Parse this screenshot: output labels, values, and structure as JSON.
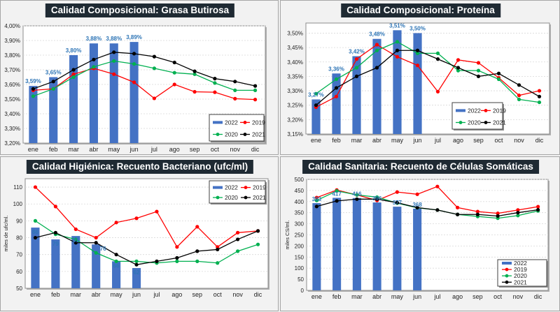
{
  "chart_data": [
    {
      "type": "bar",
      "title": "Calidad Composicional: Grasa Butirosa",
      "xlabel": "",
      "ylabel": "",
      "categories": [
        "ene",
        "feb",
        "mar",
        "abr",
        "may",
        "jun",
        "jul",
        "ago",
        "sep",
        "oct",
        "nov",
        "dic"
      ],
      "ylim": [
        3.2,
        4.0
      ],
      "yticks": [
        3.2,
        3.3,
        3.4,
        3.5,
        3.6,
        3.7,
        3.8,
        3.9,
        4.0
      ],
      "ytick_labels": [
        "3,20%",
        "3,30%",
        "3,40%",
        "3,50%",
        "3,60%",
        "3,70%",
        "3,80%",
        "3,90%",
        "4,00%"
      ],
      "grid": true,
      "legend_position": "bottom-right",
      "legend_layout": "2x2",
      "series": [
        {
          "name": "2022",
          "kind": "bar",
          "color": "#4472c4",
          "values": [
            3.59,
            3.65,
            3.8,
            3.88,
            3.88,
            3.89,
            null,
            null,
            null,
            null,
            null,
            null
          ],
          "labels": [
            "3,59%",
            "3,65%",
            "3,80%",
            "3,88%",
            "3,88%",
            "3,89%"
          ]
        },
        {
          "name": "2019",
          "kind": "line",
          "color": "#ff0000",
          "values": [
            3.56,
            3.57,
            3.67,
            3.71,
            3.67,
            3.615,
            3.505,
            3.6,
            3.55,
            3.547,
            3.503,
            3.497
          ]
        },
        {
          "name": "2020",
          "kind": "line",
          "color": "#00b050",
          "values": [
            3.52,
            3.57,
            3.65,
            3.72,
            3.76,
            3.74,
            3.71,
            3.68,
            3.67,
            3.61,
            3.56,
            3.56
          ]
        },
        {
          "name": "2021",
          "kind": "line",
          "color": "#000000",
          "values": [
            3.57,
            3.62,
            3.7,
            3.77,
            3.82,
            3.81,
            3.79,
            3.75,
            3.69,
            3.64,
            3.62,
            3.59
          ]
        }
      ]
    },
    {
      "type": "bar",
      "title": "Calidad Composicional: Proteína",
      "xlabel": "",
      "ylabel": "",
      "categories": [
        "ene",
        "feb",
        "mar",
        "abr",
        "may",
        "jun",
        "jul",
        "ago",
        "sep",
        "oct",
        "nov",
        "dic"
      ],
      "ylim": [
        3.15,
        3.535
      ],
      "yticks": [
        3.15,
        3.2,
        3.25,
        3.3,
        3.35,
        3.4,
        3.45,
        3.5
      ],
      "ytick_labels": [
        "3,15%",
        "3,20%",
        "3,25%",
        "3,30%",
        "3,35%",
        "3,40%",
        "3,45%",
        "3,50%"
      ],
      "grid": true,
      "legend_position": "bottom-right",
      "legend_layout": "2x2",
      "series": [
        {
          "name": "2022",
          "kind": "bar",
          "color": "#4472c4",
          "values": [
            3.27,
            3.36,
            3.42,
            3.48,
            3.51,
            3.5,
            null,
            null,
            null,
            null,
            null,
            null
          ],
          "labels": [
            "3,27%",
            "3,36%",
            "3,42%",
            "3,48%",
            "3,51%",
            "3,50%"
          ]
        },
        {
          "name": "2019",
          "kind": "line",
          "color": "#ff0000",
          "values": [
            3.243,
            3.28,
            3.41,
            3.46,
            3.418,
            3.388,
            3.297,
            3.407,
            3.397,
            3.345,
            3.284,
            3.3
          ]
        },
        {
          "name": "2020",
          "kind": "line",
          "color": "#00b050",
          "values": [
            3.29,
            3.34,
            3.38,
            3.44,
            3.47,
            3.43,
            3.43,
            3.37,
            3.37,
            3.34,
            3.27,
            3.26
          ]
        },
        {
          "name": "2021",
          "kind": "line",
          "color": "#000000",
          "values": [
            3.25,
            3.31,
            3.35,
            3.38,
            3.44,
            3.44,
            3.41,
            3.38,
            3.35,
            3.36,
            3.32,
            3.28
          ]
        }
      ]
    },
    {
      "type": "bar",
      "title": "Calidad Higiénica: Recuento Bacteriano (ufc/ml)",
      "xlabel": "",
      "ylabel": "miles de ufc/ml.",
      "categories": [
        "ene",
        "feb",
        "mar",
        "abr",
        "may",
        "jun",
        "jul",
        "ago",
        "sep",
        "oct",
        "nov",
        "dic"
      ],
      "ylim": [
        50,
        115
      ],
      "yticks": [
        50,
        60,
        70,
        80,
        90,
        100,
        110
      ],
      "ytick_labels": [
        "50",
        "60",
        "70",
        "80",
        "90",
        "100",
        "110"
      ],
      "grid": true,
      "legend_position": "top-right",
      "legend_layout": "2x2",
      "series": [
        {
          "name": "2022",
          "kind": "bar",
          "color": "#4472c4",
          "values": [
            86,
            79,
            81,
            76,
            66,
            62,
            null,
            null,
            null,
            null,
            null,
            null
          ],
          "labels": [
            "86",
            "79",
            "81",
            "76",
            "66",
            "62"
          ]
        },
        {
          "name": "2019",
          "kind": "line",
          "color": "#ff0000",
          "values": [
            110,
            98.5,
            85,
            80,
            89,
            91.5,
            95.5,
            74.5,
            86.5,
            74.5,
            83,
            84
          ]
        },
        {
          "name": "2020",
          "kind": "line",
          "color": "#00b050",
          "values": [
            90,
            82,
            79,
            71,
            66,
            66,
            65,
            66,
            66,
            65,
            72,
            76
          ]
        },
        {
          "name": "2021",
          "kind": "line",
          "color": "#000000",
          "values": [
            80,
            83,
            77,
            77,
            70,
            64,
            66,
            68,
            72,
            73,
            79,
            84
          ]
        }
      ]
    },
    {
      "type": "bar",
      "title": "Calidad Sanitaria: Recuento de Células Somáticas",
      "xlabel": "",
      "ylabel": "miles CS/ml.",
      "categories": [
        "ene",
        "feb",
        "mar",
        "abr",
        "may",
        "jun",
        "jul",
        "ago",
        "sep",
        "oct",
        "nov",
        "dic"
      ],
      "ylim": [
        0,
        500
      ],
      "yticks": [
        0,
        50,
        100,
        150,
        200,
        250,
        300,
        350,
        400,
        450,
        500
      ],
      "ytick_labels": [
        "0",
        "50",
        "100",
        "150",
        "200",
        "250",
        "300",
        "350",
        "400",
        "450",
        "500"
      ],
      "grid": true,
      "legend_position": "bottom-right",
      "legend_layout": "4x1",
      "series": [
        {
          "name": "2022",
          "kind": "bar",
          "color": "#4472c4",
          "values": [
            393,
            417,
            416,
            396,
            377,
            368,
            null,
            null,
            null,
            null,
            null,
            null
          ],
          "labels": [
            "393",
            "417",
            "416",
            "396",
            "377",
            "368"
          ]
        },
        {
          "name": "2019",
          "kind": "line",
          "color": "#ff0000",
          "values": [
            418,
            452,
            430,
            405,
            443,
            433,
            468,
            373,
            355,
            347,
            362,
            377
          ]
        },
        {
          "name": "2020",
          "kind": "line",
          "color": "#00b050",
          "values": [
            405,
            448,
            430,
            420,
            393,
            372,
            362,
            342,
            333,
            325,
            337,
            358
          ]
        },
        {
          "name": "2021",
          "kind": "line",
          "color": "#000000",
          "values": [
            378,
            403,
            411,
            411,
            395,
            373,
            362,
            342,
            342,
            335,
            350,
            363
          ]
        }
      ]
    }
  ]
}
